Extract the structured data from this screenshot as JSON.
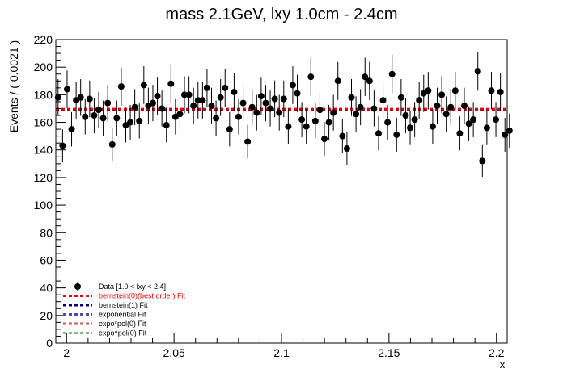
{
  "chart_data": {
    "type": "scatter",
    "title": "mass 2.1GeV, lxy 1.0cm - 2.4cm",
    "xlabel": "x",
    "ylabel": "Events / ( 0.0021 )",
    "xlim": [
      1.995,
      2.205
    ],
    "ylim": [
      0,
      220
    ],
    "x_ticks": [
      "2",
      "2.05",
      "2.1",
      "2.15",
      "2.2"
    ],
    "x_tick_values": [
      2.0,
      2.05,
      2.1,
      2.15,
      2.2
    ],
    "y_ticks": [
      "0",
      "20",
      "40",
      "60",
      "80",
      "100",
      "120",
      "140",
      "160",
      "180",
      "200",
      "220"
    ],
    "y_tick_values": [
      0,
      20,
      40,
      60,
      80,
      100,
      120,
      140,
      160,
      180,
      200,
      220
    ],
    "x_start": 1.99605,
    "bin_width": 0.0021,
    "values": [
      178,
      143,
      184,
      155,
      176,
      178,
      164,
      177,
      165,
      169,
      163,
      174,
      144,
      163,
      186,
      158,
      160,
      171,
      161,
      187,
      172,
      174,
      179,
      170,
      158,
      188,
      164,
      166,
      180,
      180,
      172,
      176,
      176,
      185,
      172,
      163,
      178,
      185,
      155,
      182,
      164,
      174,
      146,
      171,
      167,
      179,
      174,
      170,
      177,
      167,
      177,
      157,
      187,
      181,
      162,
      157,
      193,
      161,
      169,
      148,
      160,
      167,
      190,
      150,
      141,
      178,
      166,
      171,
      193,
      190,
      170,
      152,
      176,
      160,
      195,
      151,
      178,
      165,
      156,
      162,
      176,
      181,
      183,
      157,
      172,
      180,
      166,
      171,
      183,
      152,
      172,
      159,
      162,
      197,
      132,
      156,
      183,
      162,
      182,
      151,
      154
    ],
    "fits": [
      {
        "name": "bernstein(0)(best order) Fit",
        "color": "#e8000b",
        "value": 169.5
      },
      {
        "name": "bernstein(1) Fit",
        "color": "#00008b",
        "value": 169.0
      },
      {
        "name": "exponential Fit",
        "color": "#4b4ba8",
        "value": 169.2
      },
      {
        "name": "expo*pol(0) Fit",
        "color": "#c85a5a",
        "value": 169.6
      },
      {
        "name": "expo^pol(0) Fit",
        "color": "#7fbf7f",
        "value": 169.3
      }
    ],
    "legend": {
      "placement": "bottom-left",
      "data_label": "Data [1.0 < lxy < 2.4]",
      "entries": [
        {
          "label": "Data [1.0 < lxy < 2.4]",
          "color": "#000000",
          "style": "marker"
        },
        {
          "label": "bernstein(0)(best order) Fit",
          "color": "#e8000b",
          "style": "dash"
        },
        {
          "label": "bernstein(1) Fit",
          "color": "#00008b",
          "style": "dash"
        },
        {
          "label": "exponential Fit",
          "color": "#4b4ba8",
          "style": "dash"
        },
        {
          "label": "expo*pol(0) Fit",
          "color": "#c85a5a",
          "style": "dash"
        },
        {
          "label": "expo^pol(0) Fit",
          "color": "#7fbf7f",
          "style": "dash"
        }
      ]
    },
    "grid": false
  }
}
